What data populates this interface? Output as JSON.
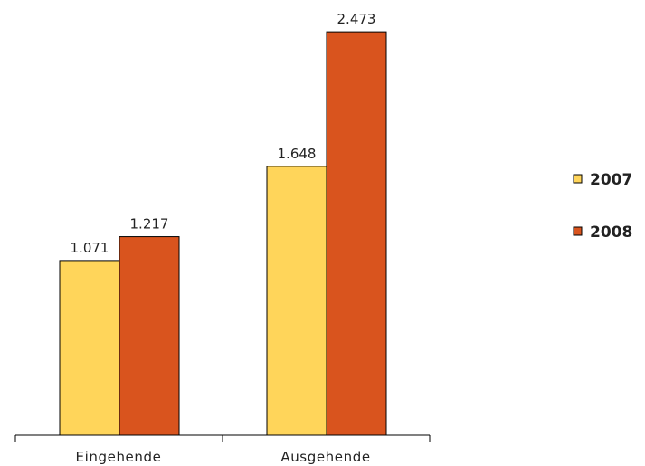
{
  "chart_data": {
    "type": "bar",
    "title": "",
    "xlabel": "",
    "ylabel": "",
    "categories": [
      "Eingehende",
      "Ausgehende"
    ],
    "series": [
      {
        "name": "2007",
        "values": [
          1071,
          1648
        ],
        "labels": [
          "1.071",
          "1.648"
        ],
        "color": "#ffd55a"
      },
      {
        "name": "2008",
        "values": [
          1217,
          2473
        ],
        "labels": [
          "1.217",
          "2.473"
        ],
        "color": "#d9541e"
      }
    ],
    "ylim": [
      0,
      2700
    ],
    "grid": false,
    "legend": "right"
  }
}
